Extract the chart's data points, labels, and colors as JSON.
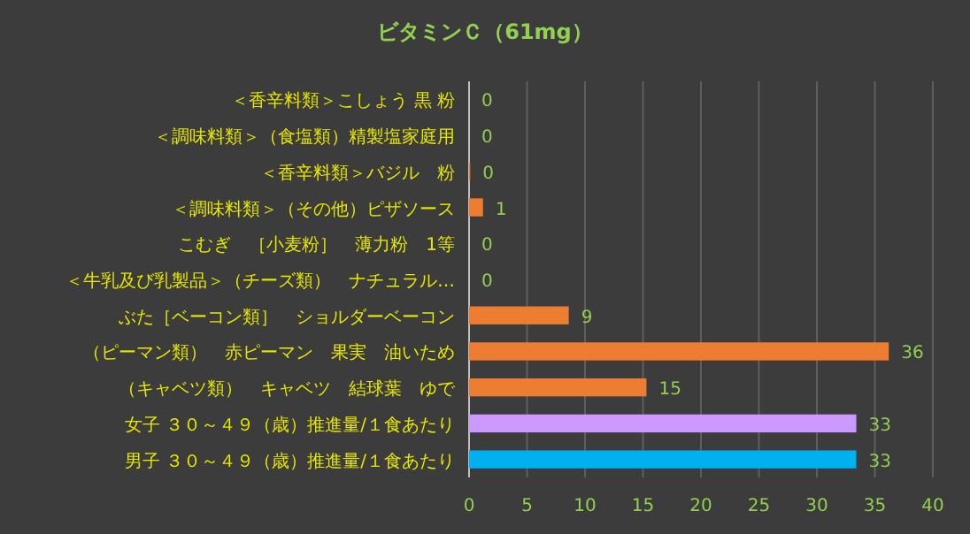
{
  "chart_data": {
    "type": "bar",
    "orientation": "horizontal",
    "title": "ビタミンＣ（61mg）",
    "categories": [
      "＜香辛料類＞こしょう 黒 粉",
      "＜調味料類＞（食塩類）精製塩家庭用",
      "＜香辛料類＞バジル　粉",
      "＜調味料類＞（その他）ピザソース",
      "こむぎ　［小麦粉］　薄力粉　1等",
      "＜牛乳及び乳製品＞（チーズ類）　ナチュラル…",
      "ぶた［ベーコン類］　ショルダーベーコン",
      "（ピーマン類）　赤ピーマン　果実　油いため",
      "（キャベツ類）　キャベツ　結球葉　ゆで",
      "女子 ３０～４９（歳）推進量/１食あたり",
      "男子 ３０～４９（歳）推進量/１食あたり"
    ],
    "values": [
      0,
      0,
      0.1,
      1.2,
      0,
      0,
      8.6,
      36.2,
      15.3,
      33.4,
      33.4
    ],
    "value_labels": [
      "0",
      "0",
      "0",
      "1",
      "0",
      "0",
      "9",
      "36",
      "15",
      "33",
      "33"
    ],
    "colors": [
      "#ed7d31",
      "#ed7d31",
      "#ed7d31",
      "#ed7d31",
      "#ed7d31",
      "#ed7d31",
      "#ed7d31",
      "#ed7d31",
      "#ed7d31",
      "#cc99ff",
      "#00b0f0"
    ],
    "xlim": [
      0,
      40
    ],
    "xticks": [
      0,
      5,
      10,
      15,
      20,
      25,
      30,
      35,
      40
    ],
    "grid": "x"
  }
}
